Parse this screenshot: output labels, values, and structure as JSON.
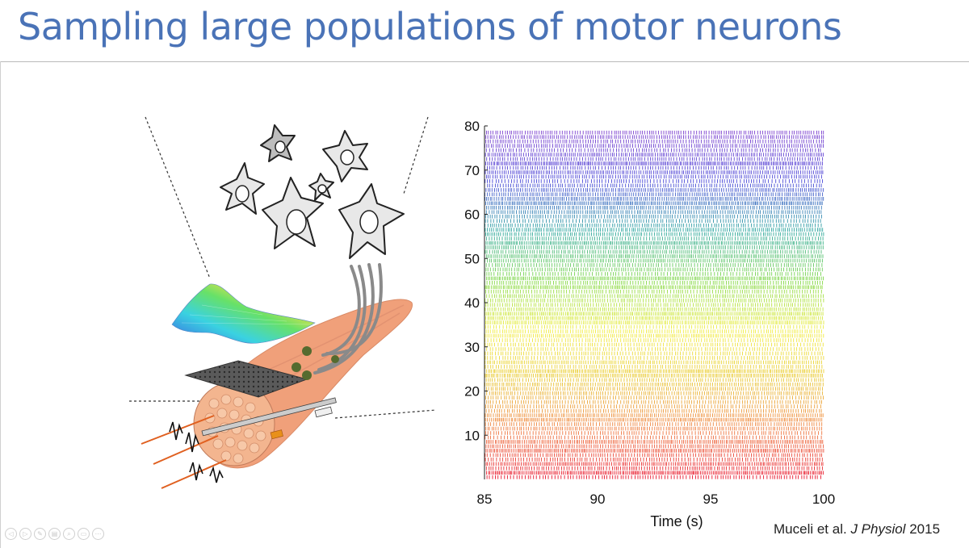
{
  "slide": {
    "title": "Sampling large populations of motor neurons",
    "citation": {
      "authors": "Muceli et al.",
      "journal": "J Physiol",
      "year": "2015"
    }
  },
  "controls": [
    {
      "name": "prev-icon",
      "glyph": "◁"
    },
    {
      "name": "next-icon",
      "glyph": "▷"
    },
    {
      "name": "pen-icon",
      "glyph": "✎"
    },
    {
      "name": "slides-icon",
      "glyph": "▤"
    },
    {
      "name": "zoom-icon",
      "glyph": "⌕"
    },
    {
      "name": "screen-icon",
      "glyph": "▭"
    },
    {
      "name": "more-icon",
      "glyph": "⋯"
    }
  ],
  "chart_data": {
    "type": "scatter",
    "title": "",
    "xlabel": "Time (s)",
    "ylabel": "",
    "xlim": [
      85,
      100
    ],
    "ylim": [
      0,
      80
    ],
    "xticks": [
      85,
      90,
      95,
      100
    ],
    "yticks": [
      10,
      20,
      30,
      40,
      50,
      60,
      70,
      80
    ],
    "n_units": 79,
    "color_gradient": [
      "#e8182e",
      "#f08040",
      "#e8c830",
      "#f2ee40",
      "#7ed844",
      "#2ea8a0",
      "#4848d8",
      "#7b3fcf"
    ],
    "marker": "vertical tick per motor-unit discharge"
  },
  "colors": {
    "title": "#4a73b7",
    "muscle": "#f0a07a",
    "cell_fill": "#e8e8e8",
    "electrode_grid": "#555555"
  }
}
